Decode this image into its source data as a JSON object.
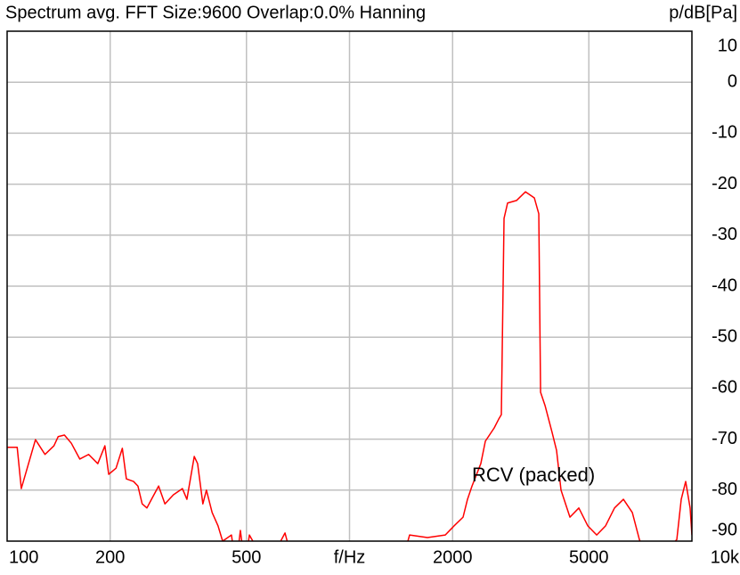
{
  "chart_data": {
    "type": "line",
    "title": "Spectrum avg.  FFT Size:9600  Overlap:0.0%  Hanning",
    "y_label": "p/dB[Pa]",
    "annotation": "RCV (packed)",
    "xscale": "log",
    "grid": true,
    "color": "#ff0000",
    "xlim": [
      100,
      10000
    ],
    "ylim": [
      -90,
      10
    ],
    "xticks": [
      100,
      200,
      500,
      {
        "value": 1000,
        "label": "f/Hz"
      },
      2000,
      5000,
      {
        "value": 10000,
        "label": "10k"
      }
    ],
    "yticks": [
      10,
      0,
      -10,
      -20,
      -30,
      -40,
      -50,
      -60,
      -70,
      -80,
      -90
    ],
    "x": [
      100,
      107,
      110,
      121,
      129,
      137,
      141,
      147,
      154,
      163,
      173,
      184,
      193,
      198,
      208,
      217,
      223,
      234,
      241,
      248,
      256,
      264,
      277,
      289,
      306,
      325,
      335,
      352,
      360,
      373,
      382,
      397,
      413,
      426,
      452,
      466,
      480,
      495,
      510,
      575,
      648,
      688,
      730,
      1411,
      1498,
      1689,
      1904,
      2021,
      2146,
      2211,
      2279,
      2418,
      2493,
      2646,
      2726,
      2776,
      2827,
      2895,
      3074,
      3264,
      3466,
      3571,
      3614,
      3724,
      3906,
      4024,
      4147,
      4403,
      4675,
      4964,
      5271,
      5596,
      5942,
      6309,
      6698,
      7025,
      7547,
      9034,
      9307,
      9590,
      9880,
      10000
    ],
    "values": [
      -71.6,
      -71.6,
      -79.7,
      -70.1,
      -73.0,
      -71.3,
      -69.5,
      -69.2,
      -70.8,
      -73.9,
      -73.0,
      -74.8,
      -71.3,
      -76.9,
      -75.7,
      -71.8,
      -77.8,
      -78.3,
      -79.2,
      -82.7,
      -83.5,
      -81.8,
      -79.2,
      -82.7,
      -80.9,
      -79.7,
      -81.8,
      -73.4,
      -74.8,
      -82.7,
      -80.0,
      -84.4,
      -87.0,
      -90,
      -88.8,
      -95,
      -87.9,
      -95,
      -88.8,
      -95,
      -88.4,
      -95,
      -95,
      -95,
      -88.8,
      -89.3,
      -88.8,
      -87.0,
      -85.3,
      -81.8,
      -79.2,
      -74.8,
      -70.4,
      -67.8,
      -66.1,
      -65.2,
      -26.7,
      -23.7,
      -23.2,
      -21.5,
      -22.7,
      -25.8,
      -60.8,
      -63.4,
      -68.7,
      -72.2,
      -80.0,
      -85.3,
      -83.5,
      -87.0,
      -88.8,
      -87.0,
      -83.5,
      -81.8,
      -84.4,
      -89.7,
      -95,
      -89.7,
      -81.8,
      -78.3,
      -83.5,
      -88.8
    ]
  }
}
